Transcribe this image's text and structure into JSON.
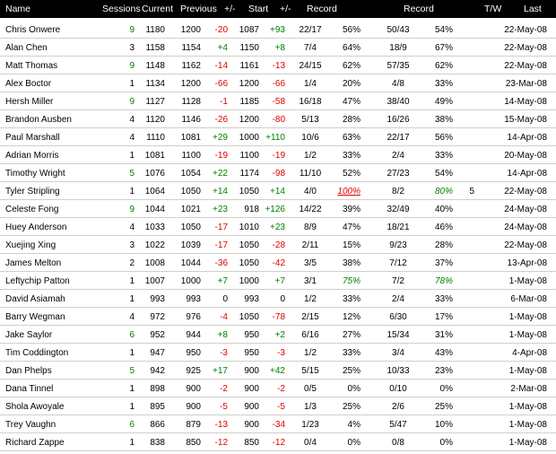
{
  "header": {
    "name": "Name",
    "sessions": "Sessions",
    "current": "Current",
    "previous": "Previous",
    "diff1": "+/-",
    "start": "Start",
    "diff2": "+/-",
    "record1": "Record",
    "record2": "Record",
    "tw": "T/W",
    "last": "Last"
  },
  "colors": {
    "header_bg": "#000000",
    "header_text": "#ffffff",
    "positive": "#008000",
    "negative": "#e00000"
  },
  "rows": [
    {
      "name": "Chris Onwere",
      "sessions": "9",
      "current": "1180",
      "previous": "1200",
      "diff1": "-20",
      "start": "1087",
      "diff2": "+93",
      "rec1": "22/17",
      "pct1": "56%",
      "rec2": "50/43",
      "pct2": "54%",
      "tw": "",
      "last": "22-May-08"
    },
    {
      "name": "Alan Chen",
      "sessions": "3",
      "current": "1158",
      "previous": "1154",
      "diff1": "+4",
      "start": "1150",
      "diff2": "+8",
      "rec1": "7/4",
      "pct1": "64%",
      "rec2": "18/9",
      "pct2": "67%",
      "tw": "",
      "last": "22-May-08"
    },
    {
      "name": "Matt Thomas",
      "sessions": "9",
      "current": "1148",
      "previous": "1162",
      "diff1": "-14",
      "start": "1161",
      "diff2": "-13",
      "rec1": "24/15",
      "pct1": "62%",
      "rec2": "57/35",
      "pct2": "62%",
      "tw": "",
      "last": "22-May-08"
    },
    {
      "name": "Alex Boctor",
      "sessions": "1",
      "current": "1134",
      "previous": "1200",
      "diff1": "-66",
      "start": "1200",
      "diff2": "-66",
      "rec1": "1/4",
      "pct1": "20%",
      "rec2": "4/8",
      "pct2": "33%",
      "tw": "",
      "last": "23-Mar-08"
    },
    {
      "name": "Hersh Miller",
      "sessions": "9",
      "current": "1127",
      "previous": "1128",
      "diff1": "-1",
      "start": "1185",
      "diff2": "-58",
      "rec1": "16/18",
      "pct1": "47%",
      "rec2": "38/40",
      "pct2": "49%",
      "tw": "",
      "last": "14-May-08"
    },
    {
      "name": "Brandon Ausben",
      "sessions": "4",
      "current": "1120",
      "previous": "1146",
      "diff1": "-26",
      "start": "1200",
      "diff2": "-80",
      "rec1": "5/13",
      "pct1": "28%",
      "rec2": "16/26",
      "pct2": "38%",
      "tw": "",
      "last": "15-May-08"
    },
    {
      "name": "Paul Marshall",
      "sessions": "4",
      "current": "1110",
      "previous": "1081",
      "diff1": "+29",
      "start": "1000",
      "diff2": "+110",
      "rec1": "10/6",
      "pct1": "63%",
      "rec2": "22/17",
      "pct2": "56%",
      "tw": "",
      "last": "14-Apr-08"
    },
    {
      "name": "Adrian Morris",
      "sessions": "1",
      "current": "1081",
      "previous": "1100",
      "diff1": "-19",
      "start": "1100",
      "diff2": "-19",
      "rec1": "1/2",
      "pct1": "33%",
      "rec2": "2/4",
      "pct2": "33%",
      "tw": "",
      "last": "20-May-08"
    },
    {
      "name": "Timothy Wright",
      "sessions": "5",
      "current": "1076",
      "previous": "1054",
      "diff1": "+22",
      "start": "1174",
      "diff2": "-98",
      "rec1": "11/10",
      "pct1": "52%",
      "rec2": "27/23",
      "pct2": "54%",
      "tw": "",
      "last": "14-Apr-08"
    },
    {
      "name": "Tyler Stripling",
      "sessions": "1",
      "current": "1064",
      "previous": "1050",
      "diff1": "+14",
      "start": "1050",
      "diff2": "+14",
      "rec1": "4/0",
      "pct1": "100%",
      "rec2": "8/2",
      "pct2": "80%",
      "tw": "5",
      "last": "22-May-08"
    },
    {
      "name": "Celeste Fong",
      "sessions": "9",
      "current": "1044",
      "previous": "1021",
      "diff1": "+23",
      "start": "918",
      "diff2": "+126",
      "rec1": "14/22",
      "pct1": "39%",
      "rec2": "32/49",
      "pct2": "40%",
      "tw": "",
      "last": "24-May-08"
    },
    {
      "name": "Huey Anderson",
      "sessions": "4",
      "current": "1033",
      "previous": "1050",
      "diff1": "-17",
      "start": "1010",
      "diff2": "+23",
      "rec1": "8/9",
      "pct1": "47%",
      "rec2": "18/21",
      "pct2": "46%",
      "tw": "",
      "last": "24-May-08"
    },
    {
      "name": "Xuejing Xing",
      "sessions": "3",
      "current": "1022",
      "previous": "1039",
      "diff1": "-17",
      "start": "1050",
      "diff2": "-28",
      "rec1": "2/11",
      "pct1": "15%",
      "rec2": "9/23",
      "pct2": "28%",
      "tw": "",
      "last": "22-May-08"
    },
    {
      "name": "James Melton",
      "sessions": "2",
      "current": "1008",
      "previous": "1044",
      "diff1": "-36",
      "start": "1050",
      "diff2": "-42",
      "rec1": "3/5",
      "pct1": "38%",
      "rec2": "7/12",
      "pct2": "37%",
      "tw": "",
      "last": "13-Apr-08"
    },
    {
      "name": "Leftychip Patton",
      "sessions": "1",
      "current": "1007",
      "previous": "1000",
      "diff1": "+7",
      "start": "1000",
      "diff2": "+7",
      "rec1": "3/1",
      "pct1": "75%",
      "rec2": "7/2",
      "pct2": "78%",
      "tw": "",
      "last": "1-May-08"
    },
    {
      "name": "David Asiamah",
      "sessions": "1",
      "current": "993",
      "previous": "993",
      "diff1": "0",
      "start": "993",
      "diff2": "0",
      "rec1": "1/2",
      "pct1": "33%",
      "rec2": "2/4",
      "pct2": "33%",
      "tw": "",
      "last": "6-Mar-08"
    },
    {
      "name": "Barry Wegman",
      "sessions": "4",
      "current": "972",
      "previous": "976",
      "diff1": "-4",
      "start": "1050",
      "diff2": "-78",
      "rec1": "2/15",
      "pct1": "12%",
      "rec2": "6/30",
      "pct2": "17%",
      "tw": "",
      "last": "1-May-08"
    },
    {
      "name": "Jake Saylor",
      "sessions": "6",
      "current": "952",
      "previous": "944",
      "diff1": "+8",
      "start": "950",
      "diff2": "+2",
      "rec1": "6/16",
      "pct1": "27%",
      "rec2": "15/34",
      "pct2": "31%",
      "tw": "",
      "last": "1-May-08"
    },
    {
      "name": "Tim Coddington",
      "sessions": "1",
      "current": "947",
      "previous": "950",
      "diff1": "-3",
      "start": "950",
      "diff2": "-3",
      "rec1": "1/2",
      "pct1": "33%",
      "rec2": "3/4",
      "pct2": "43%",
      "tw": "",
      "last": "4-Apr-08"
    },
    {
      "name": "Dan Phelps",
      "sessions": "5",
      "current": "942",
      "previous": "925",
      "diff1": "+17",
      "start": "900",
      "diff2": "+42",
      "rec1": "5/15",
      "pct1": "25%",
      "rec2": "10/33",
      "pct2": "23%",
      "tw": "",
      "last": "1-May-08"
    },
    {
      "name": "Dana Tinnel",
      "sessions": "1",
      "current": "898",
      "previous": "900",
      "diff1": "-2",
      "start": "900",
      "diff2": "-2",
      "rec1": "0/5",
      "pct1": "0%",
      "rec2": "0/10",
      "pct2": "0%",
      "tw": "",
      "last": "2-Mar-08"
    },
    {
      "name": "Shola Awoyale",
      "sessions": "1",
      "current": "895",
      "previous": "900",
      "diff1": "-5",
      "start": "900",
      "diff2": "-5",
      "rec1": "1/3",
      "pct1": "25%",
      "rec2": "2/6",
      "pct2": "25%",
      "tw": "",
      "last": "1-May-08"
    },
    {
      "name": "Trey Vaughn",
      "sessions": "6",
      "current": "866",
      "previous": "879",
      "diff1": "-13",
      "start": "900",
      "diff2": "-34",
      "rec1": "1/23",
      "pct1": "4%",
      "rec2": "5/47",
      "pct2": "10%",
      "tw": "",
      "last": "1-May-08"
    },
    {
      "name": "Richard Zappe",
      "sessions": "1",
      "current": "838",
      "previous": "850",
      "diff1": "-12",
      "start": "850",
      "diff2": "-12",
      "rec1": "0/4",
      "pct1": "0%",
      "rec2": "0/8",
      "pct2": "0%",
      "tw": "",
      "last": "1-May-08"
    }
  ]
}
